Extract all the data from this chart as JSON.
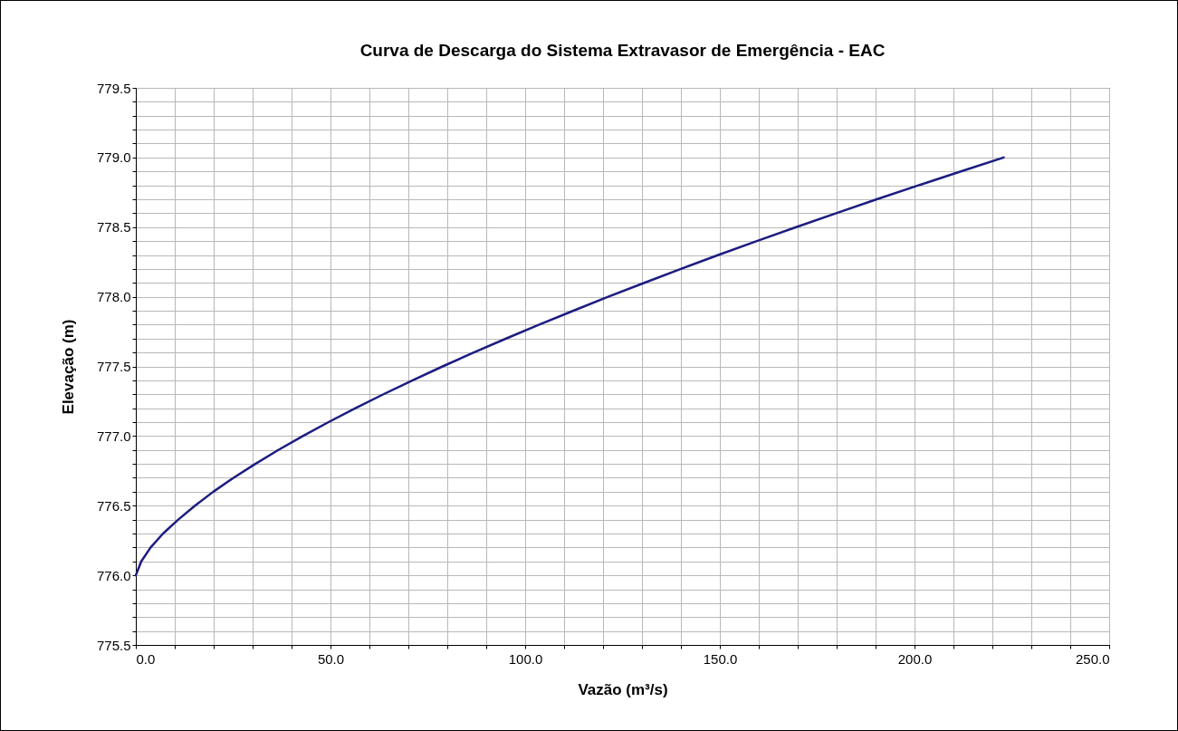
{
  "chart_data": {
    "type": "line",
    "title": "Curva de Descarga do Sistema Extravasor de Emergência - EAC",
    "xlabel": "Vazão (m³/s)",
    "ylabel": "Elevação (m)",
    "x": [
      0,
      1.4,
      3.8,
      7.0,
      10.9,
      15.2,
      19.9,
      25.1,
      30.7,
      36.6,
      42.9,
      49.5,
      56.4,
      63.6,
      71.1,
      78.8,
      86.8,
      95.1,
      103.6,
      112.4,
      121.3,
      130.6,
      140.0,
      149.6,
      159.5,
      169.6,
      179.9,
      190.3,
      201.0,
      211.9,
      222.9
    ],
    "series": [
      {
        "color": "#1c1c80",
        "values": [
          776.0,
          776.1,
          776.2,
          776.3,
          776.4,
          776.5,
          776.6,
          776.7,
          776.8,
          776.9,
          777.0,
          777.1,
          777.2,
          777.3,
          777.4,
          777.5,
          777.6,
          777.7,
          777.8,
          777.9,
          778.0,
          778.1,
          778.2,
          778.3,
          778.4,
          778.5,
          778.6,
          778.7,
          778.8,
          778.9,
          779.0
        ]
      }
    ],
    "xlim": [
      0,
      250
    ],
    "xticks": [
      {
        "value": 0,
        "label": "0.0"
      },
      {
        "value": 10,
        "label": null
      },
      {
        "value": 20,
        "label": null
      },
      {
        "value": 30,
        "label": null
      },
      {
        "value": 40,
        "label": null
      },
      {
        "value": 50,
        "label": "50.0"
      },
      {
        "value": 60,
        "label": null
      },
      {
        "value": 70,
        "label": null
      },
      {
        "value": 80,
        "label": null
      },
      {
        "value": 90,
        "label": null
      },
      {
        "value": 100,
        "label": "100.0"
      },
      {
        "value": 110,
        "label": null
      },
      {
        "value": 120,
        "label": null
      },
      {
        "value": 130,
        "label": null
      },
      {
        "value": 140,
        "label": null
      },
      {
        "value": 150,
        "label": "150.0"
      },
      {
        "value": 160,
        "label": null
      },
      {
        "value": 170,
        "label": null
      },
      {
        "value": 180,
        "label": null
      },
      {
        "value": 190,
        "label": null
      },
      {
        "value": 200,
        "label": "200.0"
      },
      {
        "value": 210,
        "label": null
      },
      {
        "value": 220,
        "label": null
      },
      {
        "value": 230,
        "label": null
      },
      {
        "value": 240,
        "label": null
      },
      {
        "value": 250,
        "label": "250.0"
      }
    ],
    "ylim": [
      775.5,
      779.5
    ],
    "yticks": [
      775.5,
      {
        "value": 775.6,
        "label": null
      },
      {
        "value": 775.7,
        "label": null
      },
      {
        "value": 775.8,
        "label": null
      },
      {
        "value": 775.9,
        "label": null
      },
      {
        "value": 776.0,
        "label": "776.0"
      },
      {
        "value": 776.1,
        "label": null
      },
      {
        "value": 776.2,
        "label": null
      },
      {
        "value": 776.3,
        "label": null
      },
      {
        "value": 776.4,
        "label": null
      },
      776.5,
      {
        "value": 776.6,
        "label": null
      },
      {
        "value": 776.7,
        "label": null
      },
      {
        "value": 776.8,
        "label": null
      },
      {
        "value": 776.9,
        "label": null
      },
      {
        "value": 777.0,
        "label": "777.0"
      },
      {
        "value": 777.1,
        "label": null
      },
      {
        "value": 777.2,
        "label": null
      },
      {
        "value": 777.3,
        "label": null
      },
      {
        "value": 777.4,
        "label": null
      },
      777.5,
      {
        "value": 777.6,
        "label": null
      },
      {
        "value": 777.7,
        "label": null
      },
      {
        "value": 777.8,
        "label": null
      },
      {
        "value": 777.9,
        "label": null
      },
      {
        "value": 778.0,
        "label": "778.0"
      },
      {
        "value": 778.1,
        "label": null
      },
      {
        "value": 778.2,
        "label": null
      },
      {
        "value": 778.3,
        "label": null
      },
      {
        "value": 778.4,
        "label": null
      },
      778.5,
      {
        "value": 778.6,
        "label": null
      },
      {
        "value": 778.7,
        "label": null
      },
      {
        "value": 778.8,
        "label": null
      },
      {
        "value": 778.9,
        "label": null
      },
      {
        "value": 779.0,
        "label": "779.0"
      },
      {
        "value": 779.1,
        "label": null
      },
      {
        "value": 779.2,
        "label": null
      },
      {
        "value": 779.3,
        "label": null
      },
      {
        "value": 779.4,
        "label": null
      },
      779.5
    ],
    "grid": true,
    "legend": false,
    "marker": "none",
    "line_style": "solid"
  }
}
